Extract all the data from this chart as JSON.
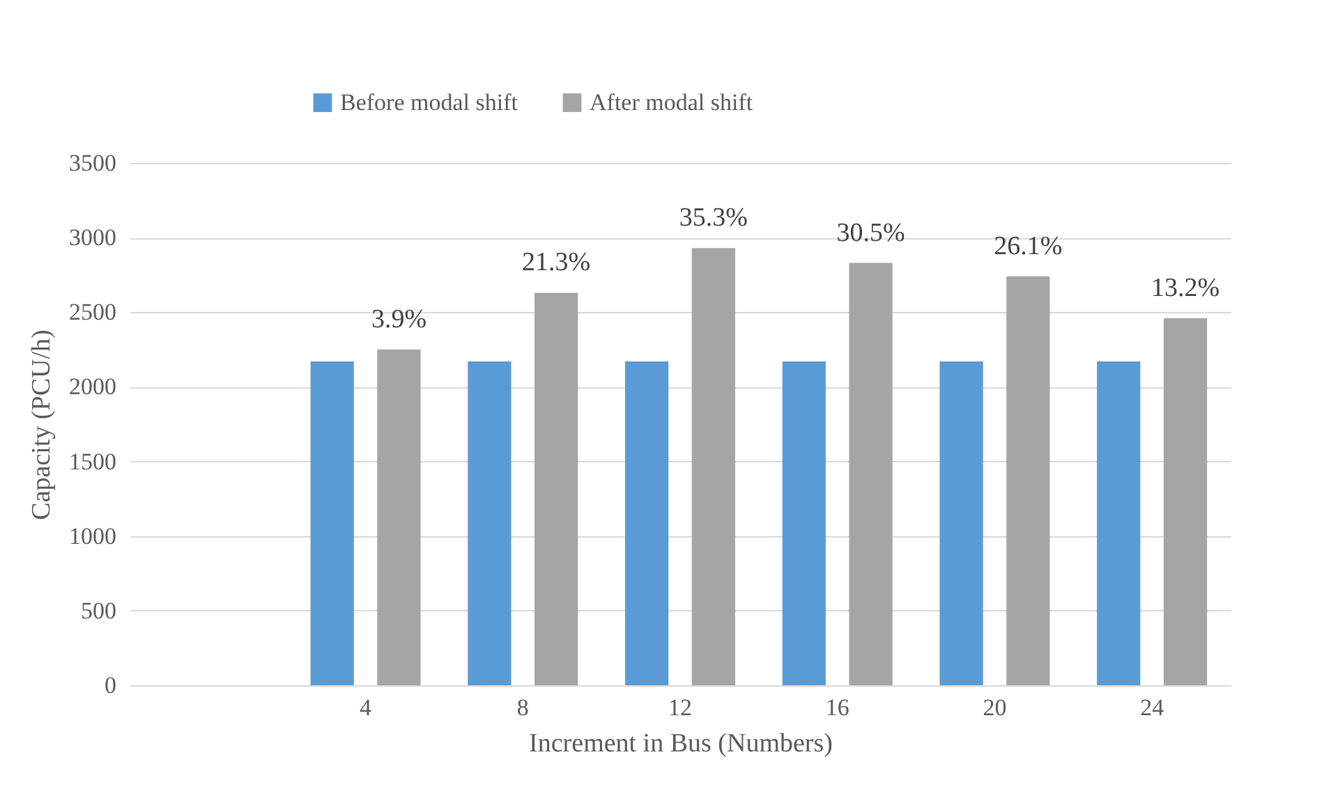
{
  "chart_data": {
    "type": "bar",
    "xlabel": "Increment in Bus (Numbers)",
    "ylabel": "Capacity (PCU/h)",
    "categories": [
      null,
      "4",
      "8",
      "12",
      "16",
      "20",
      "24"
    ],
    "series": [
      {
        "name": "Before modal shift",
        "color": "#5b9bd5",
        "values": [
          null,
          2170,
          2170,
          2170,
          2170,
          2170,
          2170
        ]
      },
      {
        "name": "After modal shift",
        "color": "#a5a5a5",
        "values": [
          null,
          2250,
          2630,
          2930,
          2830,
          2740,
          2460
        ]
      }
    ],
    "annotations": [
      "3.9%",
      "21.3%",
      "35.3%",
      "30.5%",
      "26.1%",
      "13.2%"
    ],
    "ylim": [
      0,
      3500
    ],
    "yticks": [
      0,
      500,
      1000,
      1500,
      2000,
      2500,
      3000,
      3500
    ],
    "grid": "y",
    "legend": "top"
  }
}
